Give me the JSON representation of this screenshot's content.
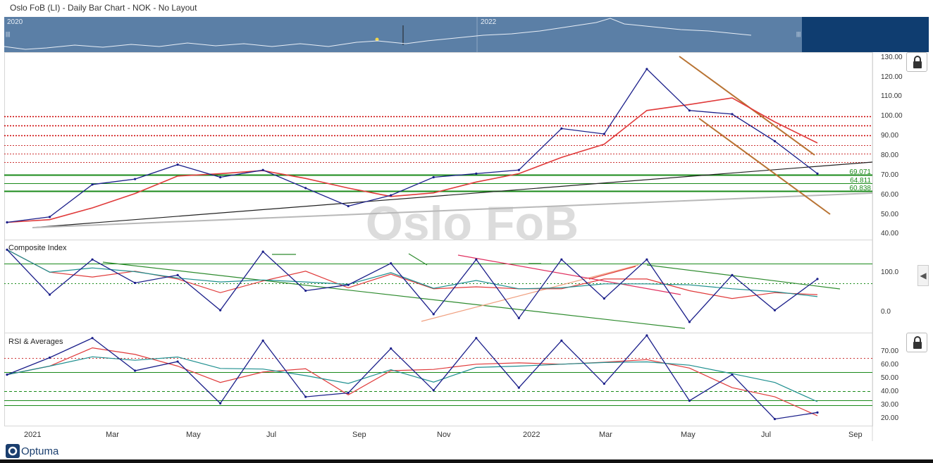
{
  "window": {
    "title": "Oslo FoB (LI) - Daily Bar Chart - NOK - No Layout"
  },
  "navigator": {
    "year_left": "2020",
    "year_right": "2022"
  },
  "watermark": "Oslo FoB",
  "brand": "Optuma",
  "colors": {
    "price": "#1b1f8a",
    "resistance": "#cc0000",
    "support": "#1a8a1a",
    "downtrend": "#b87333",
    "trendline": "#222222",
    "ma_red": "#e03a3a",
    "ma_teal": "#1e8f8f",
    "nav_bg": "#5b7fa6",
    "nav_dark": "#0f3d70"
  },
  "panels": {
    "price": {
      "label": "",
      "y_ticks": [
        "130.00",
        "120.00",
        "110.00",
        "100.00",
        "90.00",
        "80.00",
        "70.00",
        "60.00",
        "50.00",
        "40.00"
      ],
      "level_labels": [
        "69.071",
        "64.811",
        "60.838"
      ]
    },
    "composite": {
      "label": "Composite Index",
      "y_ticks": [
        "100.0",
        "0.0"
      ]
    },
    "rsi": {
      "label": "RSI & Averages",
      "y_ticks": [
        "70.00",
        "60.00",
        "50.00",
        "40.00",
        "30.00",
        "20.00"
      ]
    }
  },
  "x_axis": [
    "2021",
    "Mar",
    "May",
    "Jul",
    "Sep",
    "Nov",
    "2022",
    "Mar",
    "May",
    "Jul",
    "Sep"
  ],
  "chart_data": [
    {
      "type": "line",
      "title": "Oslo FoB (LI) - Daily Bar Chart - NOK",
      "x": [
        "2021-01",
        "2021-02",
        "2021-03",
        "2021-04",
        "2021-05",
        "2021-06",
        "2021-07",
        "2021-08",
        "2021-09",
        "2021-10",
        "2021-11",
        "2021-12",
        "2022-01",
        "2022-02",
        "2022-03",
        "2022-04",
        "2022-05",
        "2022-06",
        "2022-07",
        "2022-08"
      ],
      "series": [
        {
          "values": [
            43,
            46,
            64,
            67,
            75,
            68,
            72,
            62,
            52,
            58,
            68,
            70,
            72,
            95,
            92,
            128,
            105,
            103,
            88,
            70
          ]
        }
      ],
      "ylim": [
        35,
        135
      ],
      "horizontal_levels": [
        69.071,
        64.811,
        60.838
      ]
    },
    {
      "type": "line",
      "title": "Composite Index",
      "x": [
        "2021-01",
        "2021-02",
        "2021-03",
        "2021-04",
        "2021-05",
        "2021-06",
        "2021-07",
        "2021-08",
        "2021-09",
        "2021-10",
        "2021-11",
        "2021-12",
        "2022-01",
        "2022-02",
        "2022-03",
        "2022-04",
        "2022-05",
        "2022-06",
        "2022-07",
        "2022-08"
      ],
      "series": [
        {
          "values": [
            145,
            30,
            120,
            60,
            80,
            -10,
            140,
            40,
            55,
            110,
            -20,
            120,
            -30,
            120,
            20,
            120,
            -40,
            80,
            -10,
            70
          ]
        }
      ],
      "ylim": [
        -60,
        160
      ]
    },
    {
      "type": "line",
      "title": "RSI & Averages",
      "x": [
        "2021-01",
        "2021-02",
        "2021-03",
        "2021-04",
        "2021-05",
        "2021-06",
        "2021-07",
        "2021-08",
        "2021-09",
        "2021-10",
        "2021-11",
        "2021-12",
        "2022-01",
        "2022-02",
        "2022-03",
        "2022-04",
        "2022-05",
        "2022-06",
        "2022-07",
        "2022-08"
      ],
      "series": [
        {
          "values": [
            52,
            65,
            80,
            55,
            62,
            30,
            78,
            35,
            38,
            72,
            40,
            80,
            42,
            78,
            45,
            82,
            32,
            52,
            18,
            23
          ]
        }
      ],
      "ylim": [
        14,
        82
      ]
    }
  ]
}
